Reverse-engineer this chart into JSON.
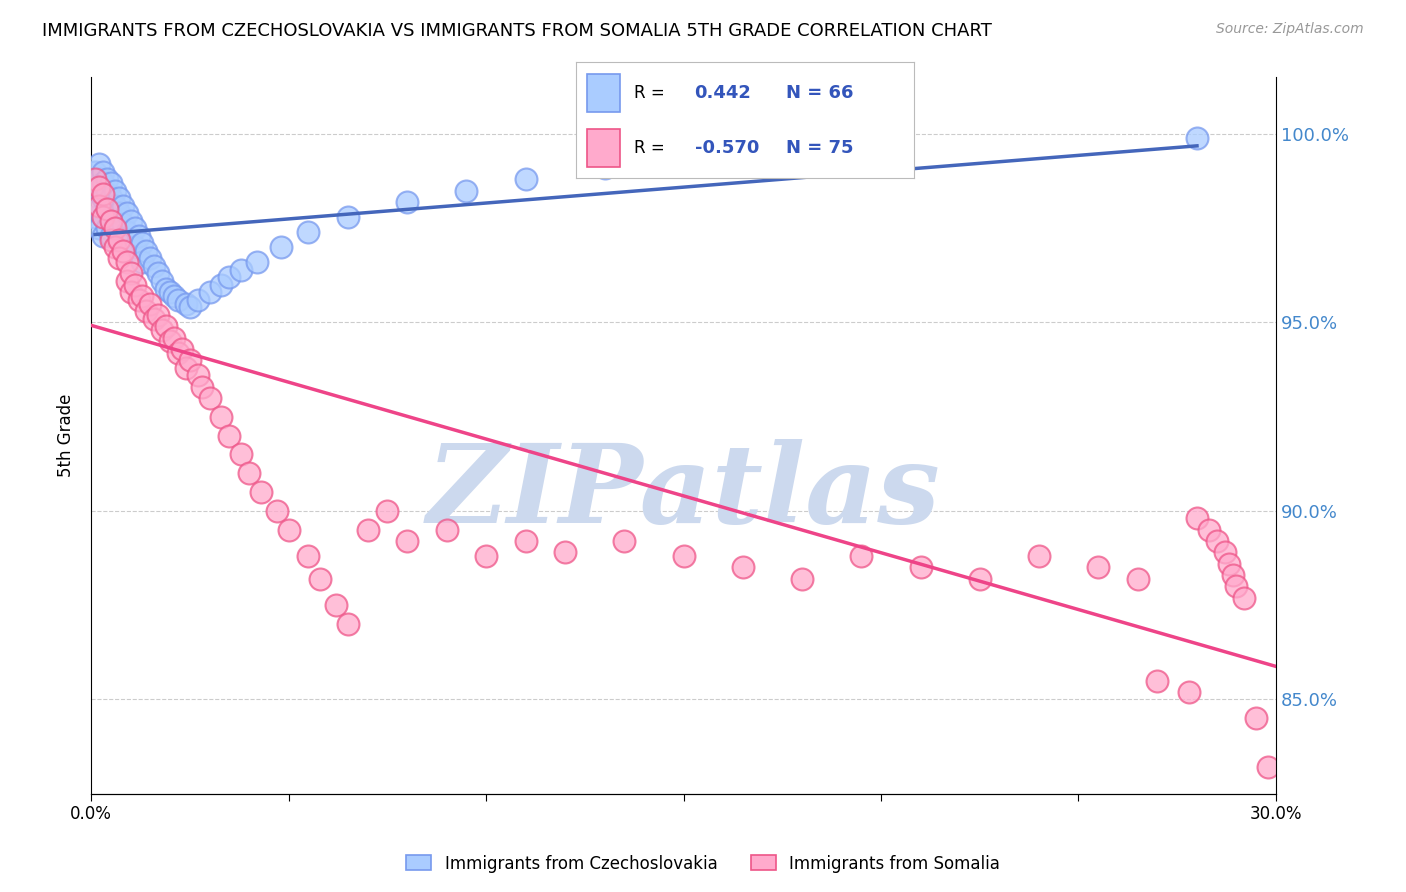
{
  "title": "IMMIGRANTS FROM CZECHOSLOVAKIA VS IMMIGRANTS FROM SOMALIA 5TH GRADE CORRELATION CHART",
  "source": "Source: ZipAtlas.com",
  "ylabel": "5th Grade",
  "y_ticks": [
    0.85,
    0.9,
    0.95,
    1.0
  ],
  "y_tick_labels": [
    "85.0%",
    "90.0%",
    "95.0%",
    "100.0%"
  ],
  "x_min": 0.0,
  "x_max": 0.3,
  "y_min": 0.825,
  "y_max": 1.015,
  "blue_R": "0.442",
  "blue_N": "66",
  "pink_R": "-0.570",
  "pink_N": "75",
  "blue_scatter_color": "#7799ee",
  "blue_face_color": "#aaccff",
  "pink_scatter_color": "#ee5588",
  "pink_face_color": "#ffaacc",
  "blue_line_color": "#4466bb",
  "pink_line_color": "#ee4488",
  "watermark_text": "ZIPatlas",
  "watermark_color": "#ccd9ee",
  "legend_value_color": "#3355bb",
  "background_color": "#ffffff",
  "grid_color": "#cccccc",
  "blue_x": [
    0.001,
    0.001,
    0.001,
    0.002,
    0.002,
    0.002,
    0.002,
    0.002,
    0.003,
    0.003,
    0.003,
    0.003,
    0.003,
    0.004,
    0.004,
    0.004,
    0.004,
    0.005,
    0.005,
    0.005,
    0.005,
    0.006,
    0.006,
    0.006,
    0.007,
    0.007,
    0.007,
    0.008,
    0.008,
    0.009,
    0.009,
    0.01,
    0.01,
    0.011,
    0.011,
    0.012,
    0.013,
    0.013,
    0.014,
    0.015,
    0.016,
    0.017,
    0.018,
    0.019,
    0.02,
    0.021,
    0.022,
    0.024,
    0.025,
    0.027,
    0.03,
    0.033,
    0.035,
    0.038,
    0.042,
    0.048,
    0.055,
    0.065,
    0.08,
    0.095,
    0.11,
    0.13,
    0.155,
    0.18,
    0.2,
    0.28
  ],
  "blue_y": [
    0.99,
    0.985,
    0.978,
    0.992,
    0.988,
    0.985,
    0.98,
    0.975,
    0.99,
    0.987,
    0.983,
    0.978,
    0.973,
    0.988,
    0.984,
    0.98,
    0.975,
    0.987,
    0.983,
    0.978,
    0.973,
    0.985,
    0.981,
    0.976,
    0.983,
    0.979,
    0.974,
    0.981,
    0.976,
    0.979,
    0.974,
    0.977,
    0.972,
    0.975,
    0.97,
    0.973,
    0.971,
    0.966,
    0.969,
    0.967,
    0.965,
    0.963,
    0.961,
    0.959,
    0.958,
    0.957,
    0.956,
    0.955,
    0.954,
    0.956,
    0.958,
    0.96,
    0.962,
    0.964,
    0.966,
    0.97,
    0.974,
    0.978,
    0.982,
    0.985,
    0.988,
    0.991,
    0.993,
    0.995,
    0.997,
    0.999
  ],
  "pink_x": [
    0.001,
    0.002,
    0.002,
    0.003,
    0.003,
    0.004,
    0.005,
    0.005,
    0.006,
    0.006,
    0.007,
    0.007,
    0.008,
    0.009,
    0.009,
    0.01,
    0.01,
    0.011,
    0.012,
    0.013,
    0.014,
    0.015,
    0.016,
    0.017,
    0.018,
    0.019,
    0.02,
    0.021,
    0.022,
    0.023,
    0.024,
    0.025,
    0.027,
    0.028,
    0.03,
    0.033,
    0.035,
    0.038,
    0.04,
    0.043,
    0.047,
    0.05,
    0.055,
    0.058,
    0.062,
    0.065,
    0.07,
    0.075,
    0.08,
    0.09,
    0.1,
    0.11,
    0.12,
    0.135,
    0.15,
    0.165,
    0.18,
    0.195,
    0.21,
    0.225,
    0.24,
    0.255,
    0.265,
    0.27,
    0.278,
    0.28,
    0.283,
    0.285,
    0.287,
    0.288,
    0.289,
    0.29,
    0.292,
    0.295,
    0.298
  ],
  "pink_y": [
    0.988,
    0.986,
    0.981,
    0.984,
    0.978,
    0.98,
    0.977,
    0.972,
    0.975,
    0.97,
    0.972,
    0.967,
    0.969,
    0.966,
    0.961,
    0.963,
    0.958,
    0.96,
    0.956,
    0.957,
    0.953,
    0.955,
    0.951,
    0.952,
    0.948,
    0.949,
    0.945,
    0.946,
    0.942,
    0.943,
    0.938,
    0.94,
    0.936,
    0.933,
    0.93,
    0.925,
    0.92,
    0.915,
    0.91,
    0.905,
    0.9,
    0.895,
    0.888,
    0.882,
    0.875,
    0.87,
    0.895,
    0.9,
    0.892,
    0.895,
    0.888,
    0.892,
    0.889,
    0.892,
    0.888,
    0.885,
    0.882,
    0.888,
    0.885,
    0.882,
    0.888,
    0.885,
    0.882,
    0.855,
    0.852,
    0.898,
    0.895,
    0.892,
    0.889,
    0.886,
    0.883,
    0.88,
    0.877,
    0.845,
    0.832
  ],
  "blue_trend_x": [
    0.0,
    0.295
  ],
  "pink_trend_x": [
    0.0,
    0.295
  ]
}
